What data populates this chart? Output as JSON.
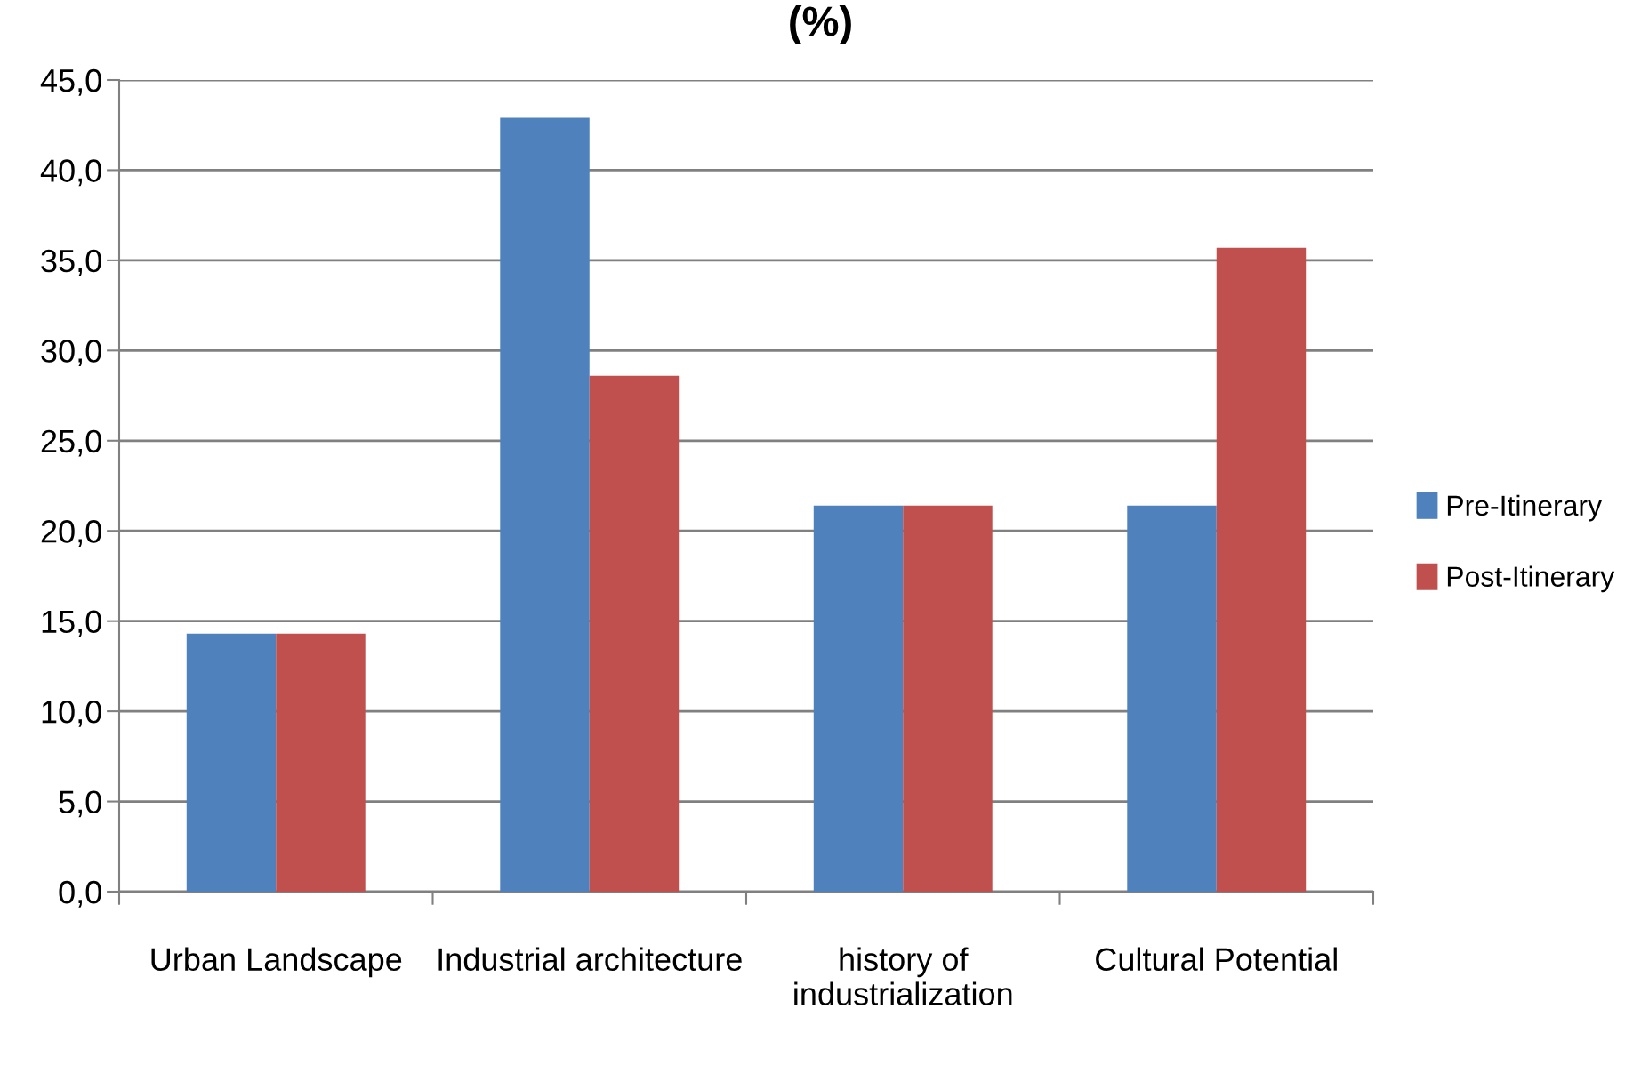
{
  "chart_data": {
    "type": "bar",
    "title": "(%)",
    "categories": [
      "Urban Landscape",
      "Industrial architecture",
      "history of\nindustrialization",
      "Cultural Potential"
    ],
    "series": [
      {
        "name": "Pre-Itinerary",
        "color": "#4f81bd",
        "values": [
          14.3,
          42.9,
          21.4,
          21.4
        ]
      },
      {
        "name": "Post-Itinerary",
        "color": "#c0504d",
        "values": [
          14.3,
          28.6,
          21.4,
          35.7
        ]
      }
    ],
    "ylim": [
      0,
      45
    ],
    "yticks": [
      {
        "value": 0,
        "label": "0,0"
      },
      {
        "value": 5,
        "label": "5,0"
      },
      {
        "value": 10,
        "label": "10,0"
      },
      {
        "value": 15,
        "label": "15,0"
      },
      {
        "value": 20,
        "label": "20,0"
      },
      {
        "value": 25,
        "label": "25,0"
      },
      {
        "value": 30,
        "label": "30,0"
      },
      {
        "value": 35,
        "label": "35,0"
      },
      {
        "value": 40,
        "label": "40,0"
      },
      {
        "value": 45,
        "label": "45,0"
      }
    ],
    "grid": "y",
    "legend": "right"
  }
}
